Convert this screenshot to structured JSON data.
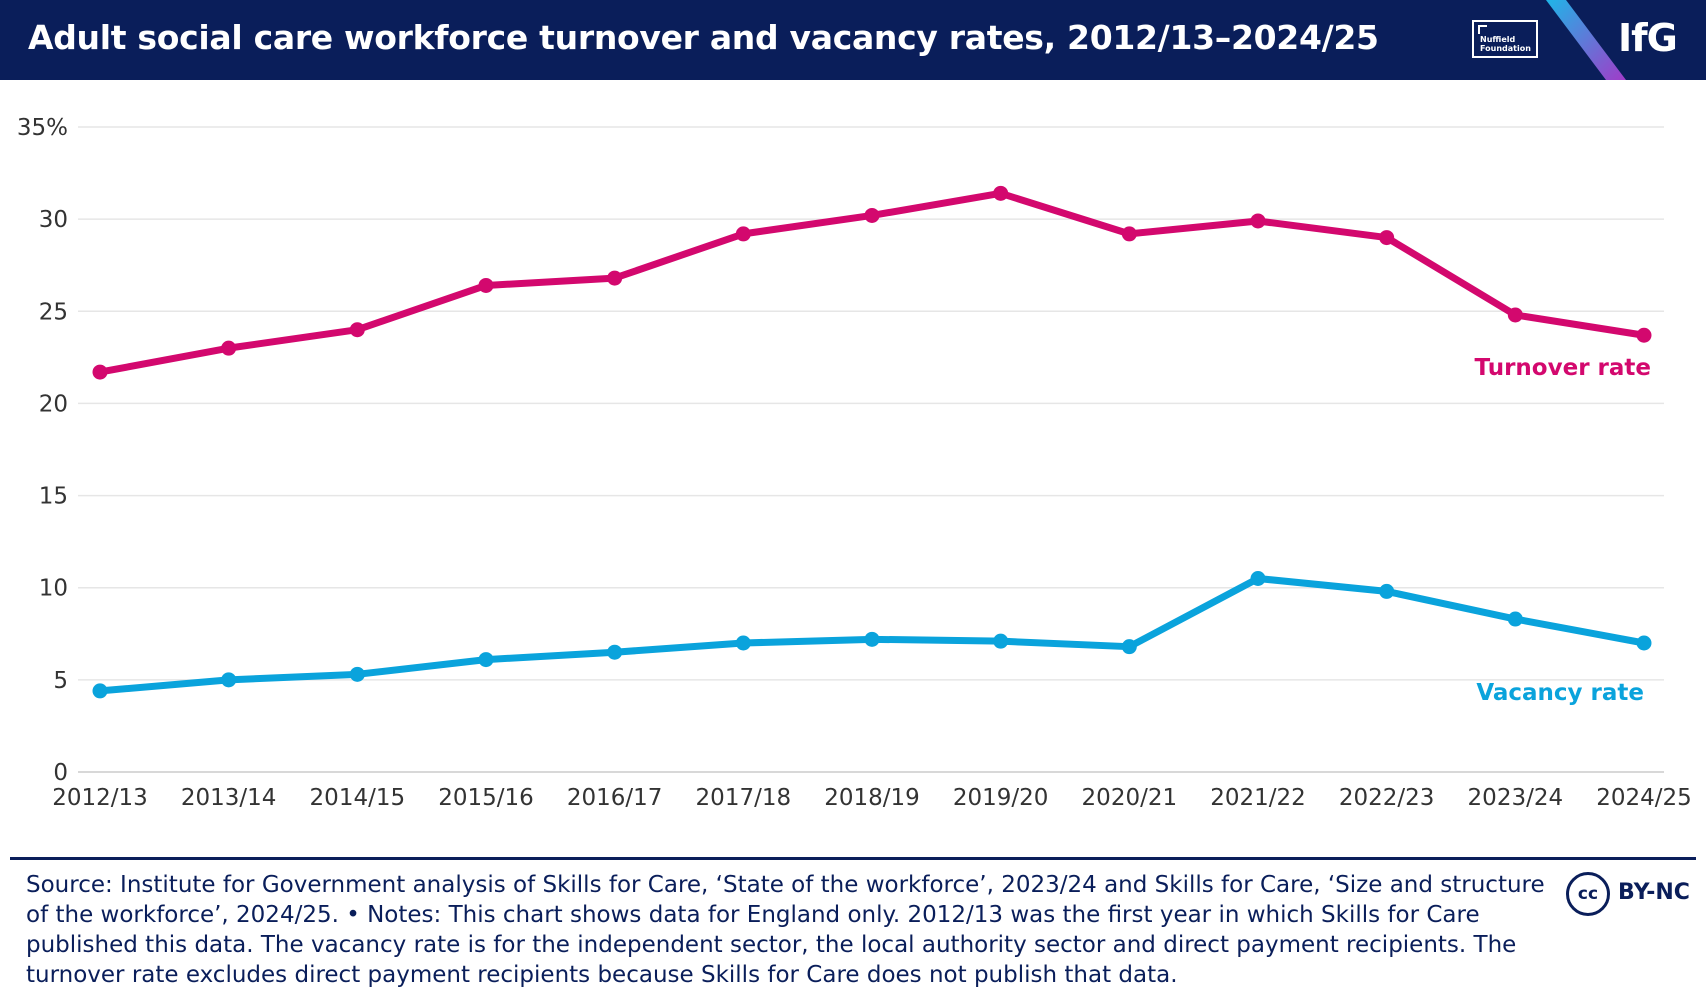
{
  "header": {
    "title": "Adult social care workforce turnover and vacancy rates, 2012/13–2024/25",
    "partner_logo": "Nuffield\nFoundation",
    "brand_logo": "IfG"
  },
  "colors": {
    "header_bg": "#0a1e5a",
    "turnover": "#d3086e",
    "vacancy": "#0aa3dc",
    "grid": "#e6e6e6",
    "axis_text": "#333333"
  },
  "chart_data": {
    "type": "line",
    "title": "Adult social care workforce turnover and vacancy rates, 2012/13–2024/25",
    "xlabel": "",
    "ylabel": "",
    "categories": [
      "2012/13",
      "2013/14",
      "2014/15",
      "2015/16",
      "2016/17",
      "2017/18",
      "2018/19",
      "2019/20",
      "2020/21",
      "2021/22",
      "2022/23",
      "2023/24",
      "2024/25"
    ],
    "ylim": [
      0,
      35
    ],
    "yticks": [
      0,
      5,
      10,
      15,
      20,
      25,
      30,
      35
    ],
    "ytick_labels": [
      "0",
      "5",
      "10",
      "15",
      "20",
      "25",
      "30",
      "35%"
    ],
    "grid": true,
    "series": [
      {
        "name": "Turnover rate",
        "color": "#d3086e",
        "values": [
          21.7,
          23.0,
          24.0,
          26.4,
          26.8,
          29.2,
          30.2,
          31.4,
          29.2,
          29.9,
          29.0,
          24.8,
          23.7
        ]
      },
      {
        "name": "Vacancy rate",
        "color": "#0aa3dc",
        "values": [
          4.4,
          5.0,
          5.3,
          6.1,
          6.5,
          7.0,
          7.2,
          7.1,
          6.8,
          10.5,
          9.8,
          8.3,
          7.0
        ]
      }
    ]
  },
  "footer": {
    "note": "Source: Institute for Government analysis of Skills for Care, ‘State of the workforce’, 2023/24 and Skills for Care, ‘Size and structure of the workforce’, 2024/25. • Notes: This chart shows data for England only. 2012/13 was the first year in which Skills for Care published this data. The vacancy rate is for the independent sector, the local authority sector and direct payment recipients. The turnover rate excludes direct payment recipients because Skills for Care does not publish that data.",
    "license_icon": "cc",
    "license_text": "BY-NC"
  }
}
